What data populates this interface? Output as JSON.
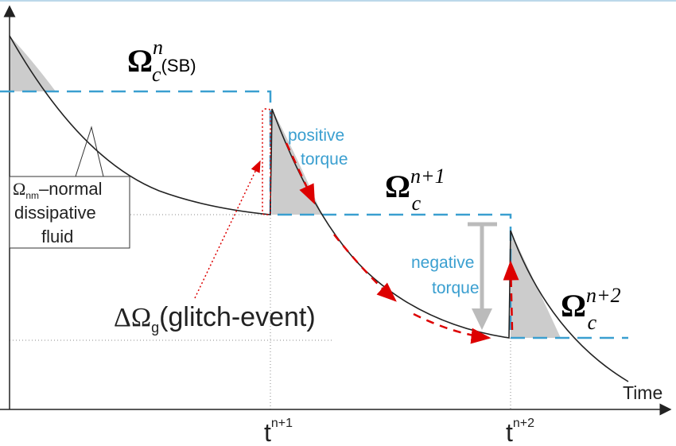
{
  "labels": {
    "omega_sb": {
      "symbol": "Ω",
      "sup": "n",
      "sub": "c",
      "suffix": "(SB)"
    },
    "positive_torque": [
      "positive",
      "torque"
    ],
    "omega_n1": {
      "symbol": "Ω",
      "sup": "n+1",
      "sub": "c"
    },
    "normal_fluid": {
      "symbol": "Ω",
      "sub": "nm",
      "lines": [
        "–normal",
        "dissipative",
        "fluid"
      ]
    },
    "negative_torque": [
      "negative",
      "torque"
    ],
    "glitch": {
      "symbol": "ΔΩ",
      "sub": "g",
      "suffix": "(glitch-event)"
    },
    "omega_n2": {
      "symbol": "Ω",
      "sup": "n+2",
      "sub": "c"
    },
    "x_axis": "Time",
    "t_n1": {
      "base": "t",
      "sup": "n+1"
    },
    "t_n2": {
      "base": "t",
      "sup": "n+2"
    }
  }
}
